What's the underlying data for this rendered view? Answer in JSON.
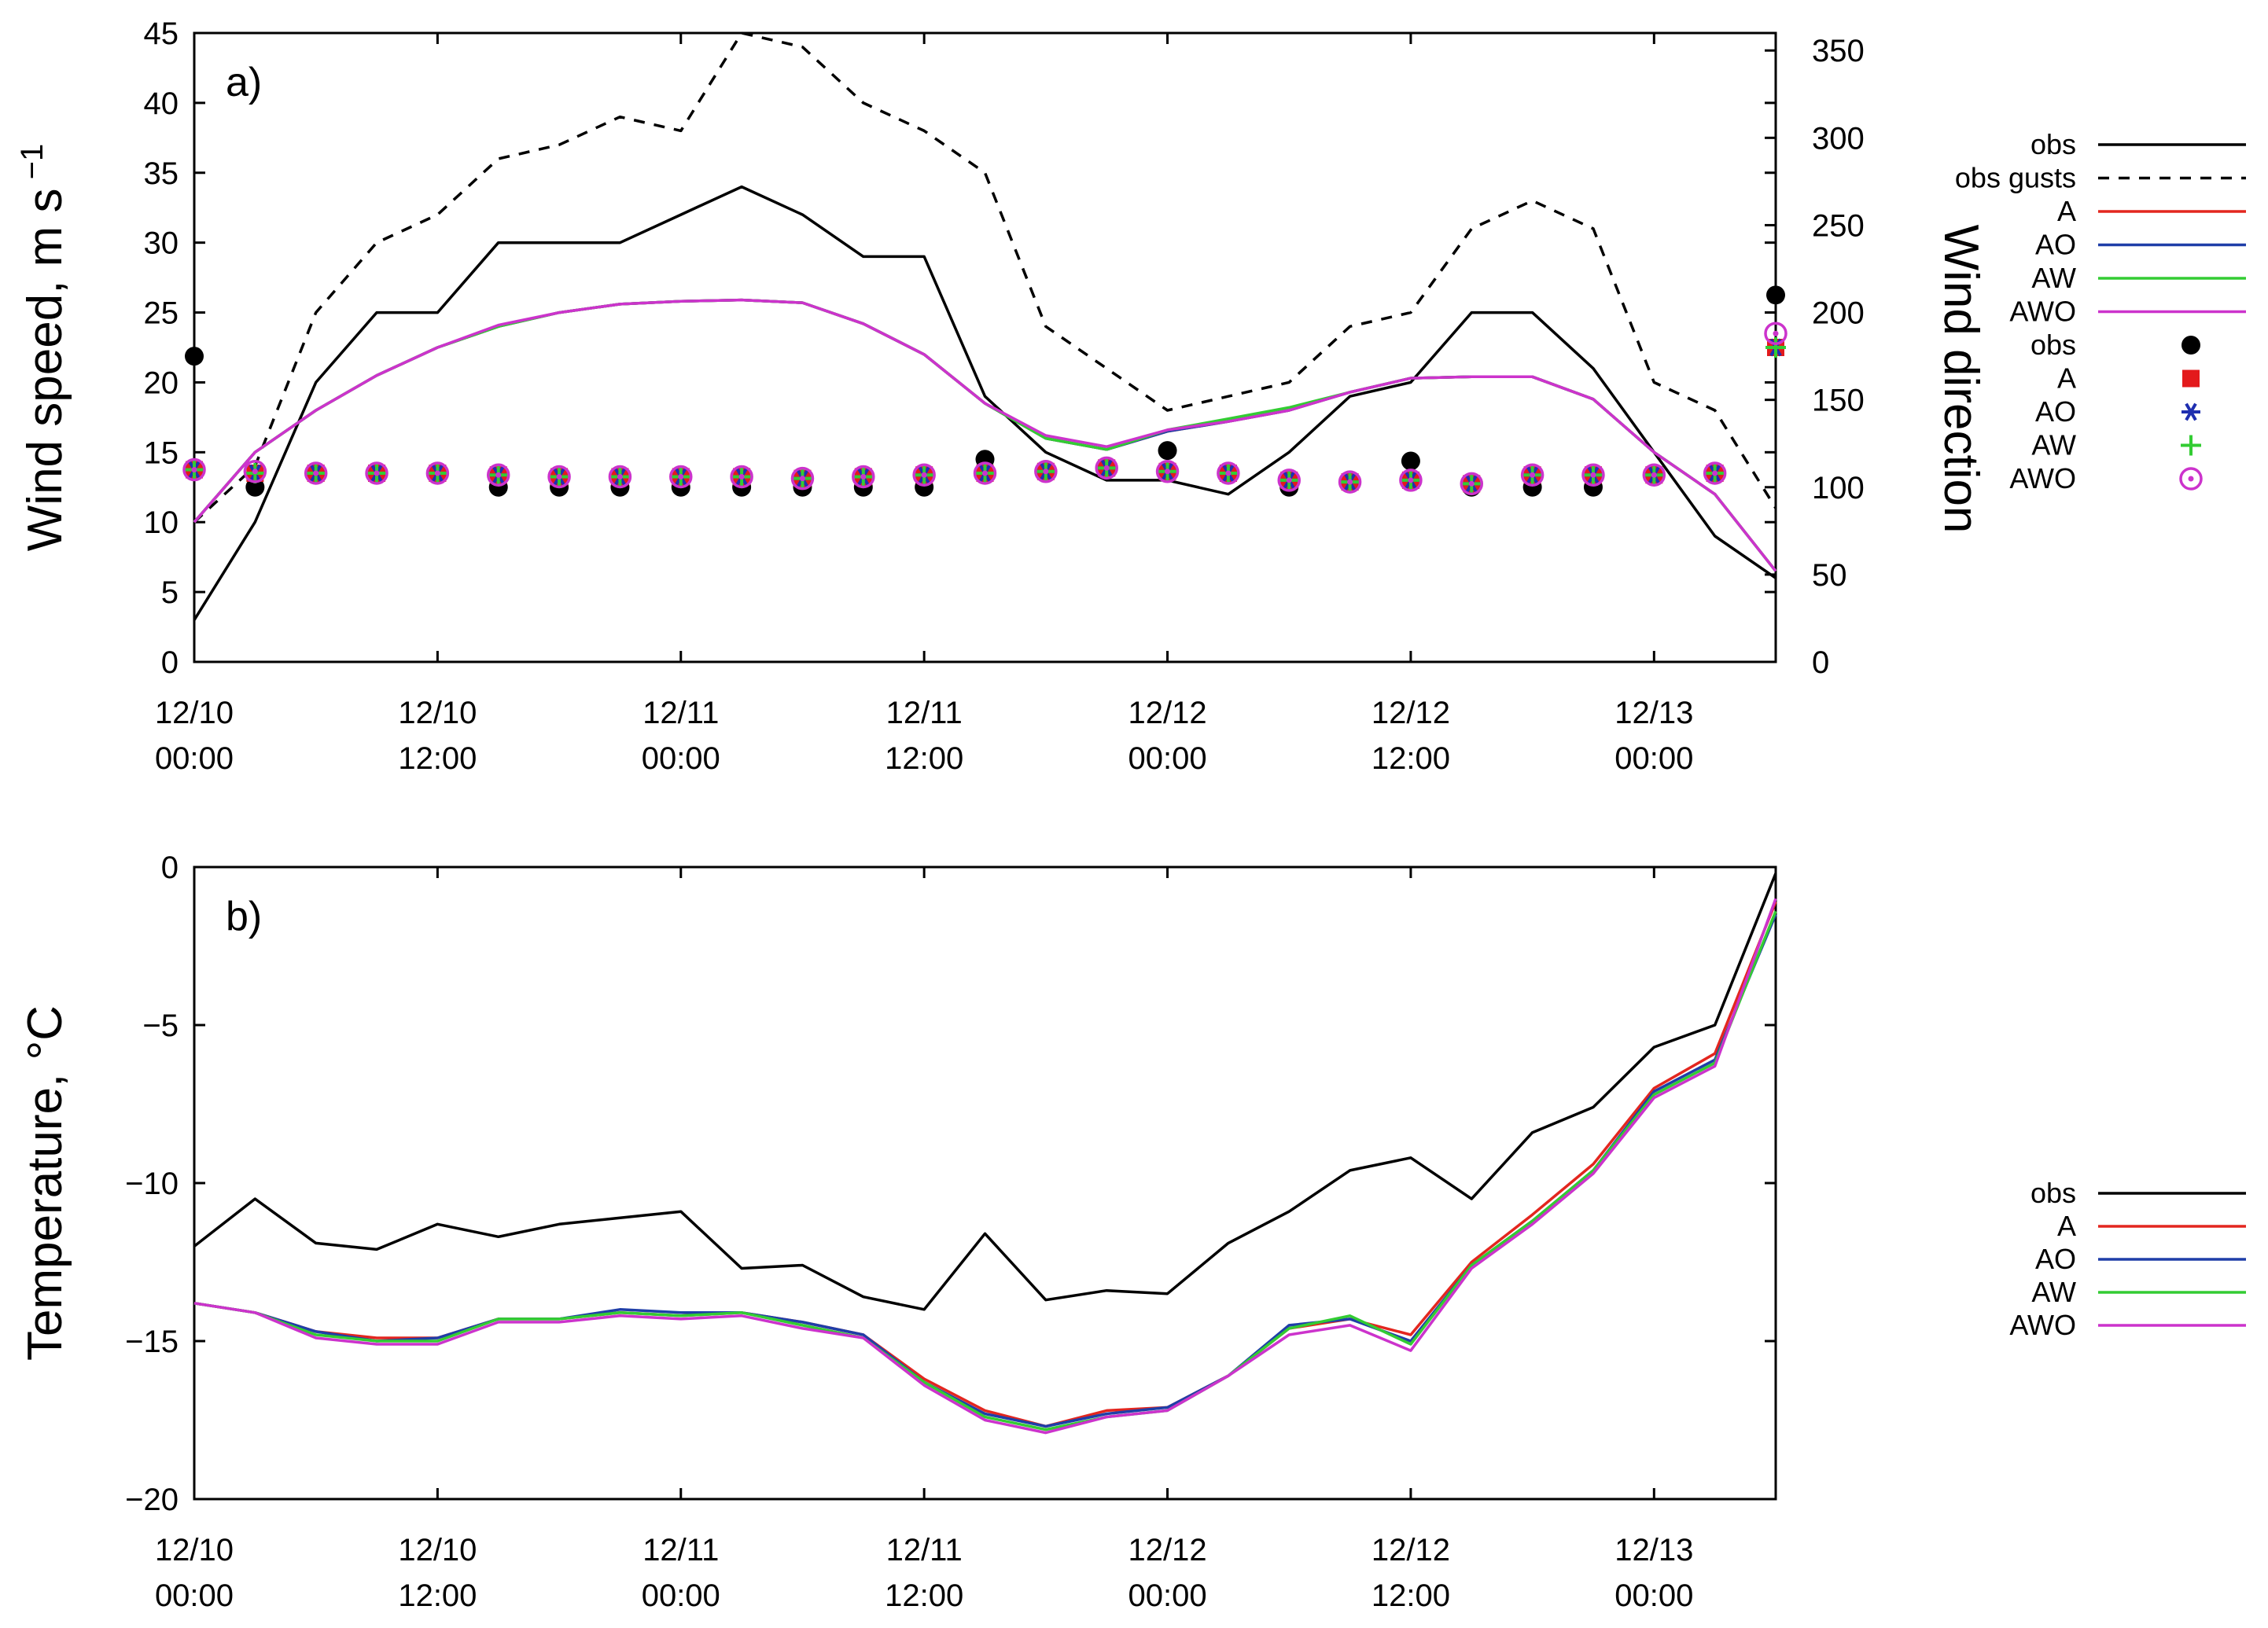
{
  "chart_data": [
    {
      "panel_label": "a)",
      "type": "line",
      "ylabel": "Wind speed, m s",
      "ylabel_sup": "−1",
      "y2label": "Wind direction",
      "ylim": [
        0,
        45
      ],
      "yticks": [
        "0",
        "5",
        "10",
        "15",
        "20",
        "25",
        "30",
        "35",
        "40",
        "45"
      ],
      "y2lim": [
        0,
        360
      ],
      "y2ticks": [
        "0",
        "50",
        "100",
        "150",
        "200",
        "250",
        "300",
        "350"
      ],
      "xlim": [
        0,
        78
      ],
      "xticks": [
        {
          "x": 0,
          "date": "12/10",
          "time": "00:00"
        },
        {
          "x": 12,
          "date": "12/10",
          "time": "12:00"
        },
        {
          "x": 24,
          "date": "12/11",
          "time": "00:00"
        },
        {
          "x": 36,
          "date": "12/11",
          "time": "12:00"
        },
        {
          "x": 48,
          "date": "12/12",
          "time": "00:00"
        },
        {
          "x": 60,
          "date": "12/12",
          "time": "12:00"
        },
        {
          "x": 72,
          "date": "12/13",
          "time": "00:00"
        }
      ],
      "x": [
        0,
        3,
        6,
        9,
        12,
        15,
        18,
        21,
        24,
        27,
        30,
        33,
        36,
        39,
        42,
        45,
        48,
        51,
        54,
        57,
        60,
        63,
        66,
        69,
        72,
        75,
        78
      ],
      "series": [
        {
          "name": "obs",
          "axis": "left",
          "style": "solid",
          "color": "#000000",
          "values": [
            3,
            10,
            20,
            25,
            25,
            30,
            30,
            30,
            32,
            34,
            32,
            29,
            29,
            19,
            15,
            13,
            13,
            12,
            15,
            19,
            20,
            25,
            25,
            21,
            15,
            9,
            6
          ]
        },
        {
          "name": "obs gusts",
          "axis": "left",
          "style": "dashed",
          "color": "#000000",
          "values": [
            10,
            14,
            25,
            30,
            32,
            36,
            37,
            39,
            38,
            45,
            44,
            40,
            38,
            35,
            24,
            21,
            18,
            19,
            20,
            24,
            25,
            31,
            33,
            31,
            20,
            18,
            11
          ]
        },
        {
          "name": "A",
          "axis": "left",
          "style": "solid",
          "color": "#e3261f",
          "values": [
            10,
            15,
            18,
            20.5,
            22.5,
            24,
            25,
            25.6,
            25.8,
            25.9,
            25.7,
            24.2,
            22,
            18.5,
            16,
            15.2,
            16.5,
            17.2,
            18,
            19.3,
            20.3,
            20.4,
            20.4,
            18.8,
            15,
            12,
            6.5
          ]
        },
        {
          "name": "AO",
          "axis": "left",
          "style": "solid",
          "color": "#1f3ea8",
          "values": [
            10,
            15,
            18,
            20.5,
            22.5,
            24,
            25,
            25.6,
            25.8,
            25.9,
            25.7,
            24.2,
            22,
            18.5,
            16,
            15.2,
            16.5,
            17.2,
            18,
            19.3,
            20.3,
            20.4,
            20.4,
            18.8,
            15,
            12,
            6.5
          ]
        },
        {
          "name": "AW",
          "axis": "left",
          "style": "solid",
          "color": "#33cc33",
          "values": [
            10,
            15,
            18,
            20.5,
            22.5,
            24,
            25,
            25.6,
            25.8,
            25.9,
            25.7,
            24.2,
            22,
            18.5,
            16,
            15.2,
            16.6,
            17.4,
            18.2,
            19.3,
            20.3,
            20.4,
            20.4,
            18.8,
            15,
            12,
            6.5
          ]
        },
        {
          "name": "AWO",
          "axis": "left",
          "style": "solid",
          "color": "#cc33cc",
          "values": [
            10,
            15,
            18,
            20.5,
            22.5,
            24.1,
            25,
            25.6,
            25.8,
            25.9,
            25.7,
            24.2,
            22,
            18.5,
            16.2,
            15.4,
            16.6,
            17.2,
            18,
            19.3,
            20.3,
            20.4,
            20.4,
            18.8,
            15,
            12,
            6.5
          ]
        }
      ],
      "markers": {
        "x": [
          0,
          3,
          6,
          9,
          12,
          15,
          18,
          21,
          24,
          27,
          30,
          33,
          36,
          39,
          42,
          45,
          48,
          51,
          54,
          57,
          60,
          63,
          66,
          69,
          72,
          75,
          78
        ],
        "series": [
          {
            "name": "obs",
            "shape": "filled-circle",
            "color": "#000000",
            "values": [
              175,
              100,
              108,
              108,
              108,
              100,
              100,
              100,
              100,
              100,
              100,
              100,
              100,
              116,
              110,
              112,
              121,
              108,
              100,
              104,
              115,
              100,
              100,
              100,
              108,
              108,
              210
            ]
          },
          {
            "name": "A",
            "shape": "filled-square",
            "color": "#e31a1c",
            "values": [
              110,
              108,
              108,
              108,
              108,
              107,
              106,
              106,
              106,
              106,
              105,
              106,
              107,
              108,
              109,
              111,
              109,
              108,
              104,
              103,
              104,
              102,
              107,
              107,
              107,
              108,
              180
            ]
          },
          {
            "name": "AO",
            "shape": "asterisk",
            "color": "#1f2fb0",
            "values": [
              110,
              108,
              108,
              108,
              108,
              107,
              106,
              106,
              106,
              106,
              105,
              106,
              107,
              108,
              109,
              111,
              109,
              108,
              104,
              103,
              104,
              102,
              107,
              107,
              107,
              108,
              180
            ]
          },
          {
            "name": "AW",
            "shape": "plus",
            "color": "#33cc33",
            "values": [
              110,
              108,
              108,
              108,
              108,
              107,
              106,
              106,
              106,
              106,
              105,
              106,
              107,
              108,
              109,
              111,
              109,
              108,
              104,
              103,
              104,
              102,
              107,
              107,
              107,
              108,
              180
            ]
          },
          {
            "name": "AWO",
            "shape": "dotted-circle",
            "color": "#cc33cc",
            "values": [
              110,
              109,
              108,
              108,
              108,
              107,
              106,
              106,
              106,
              106,
              105,
              106,
              107,
              108,
              109,
              111,
              109,
              108,
              104,
              103,
              104,
              102,
              107,
              107,
              107,
              108,
              188
            ]
          }
        ]
      },
      "legend": {
        "position": "outside-right",
        "lines": [
          "obs",
          "obs gusts",
          "A",
          "AO",
          "AW",
          "AWO"
        ],
        "markers": [
          "obs",
          "A",
          "AO",
          "AW",
          "AWO"
        ]
      }
    },
    {
      "panel_label": "b)",
      "type": "line",
      "ylabel": "Temperature, °C",
      "ylim": [
        -20,
        0
      ],
      "yticks": [
        "−20",
        "−15",
        "−10",
        "−5",
        "0"
      ],
      "xlim": [
        0,
        78
      ],
      "xticks": [
        {
          "x": 0,
          "date": "12/10",
          "time": "00:00"
        },
        {
          "x": 12,
          "date": "12/10",
          "time": "12:00"
        },
        {
          "x": 24,
          "date": "12/11",
          "time": "00:00"
        },
        {
          "x": 36,
          "date": "12/11",
          "time": "12:00"
        },
        {
          "x": 48,
          "date": "12/12",
          "time": "00:00"
        },
        {
          "x": 60,
          "date": "12/12",
          "time": "12:00"
        },
        {
          "x": 72,
          "date": "12/13",
          "time": "00:00"
        }
      ],
      "x": [
        0,
        3,
        6,
        9,
        12,
        15,
        18,
        21,
        24,
        27,
        30,
        33,
        36,
        39,
        42,
        45,
        48,
        51,
        54,
        57,
        60,
        63,
        66,
        69,
        72,
        75,
        78
      ],
      "series": [
        {
          "name": "obs",
          "style": "solid",
          "color": "#000000",
          "values": [
            -12,
            -10.5,
            -11.9,
            -12.1,
            -11.3,
            -11.7,
            -11.3,
            -11.1,
            -10.9,
            -12.7,
            -12.6,
            -13.6,
            -14,
            -11.6,
            -13.7,
            -13.4,
            -13.5,
            -11.9,
            -10.9,
            -9.6,
            -9.2,
            -10.5,
            -8.4,
            -7.6,
            -5.7,
            -5,
            -0.2
          ]
        },
        {
          "name": "A",
          "style": "solid",
          "color": "#e3261f",
          "values": [
            -13.8,
            -14.1,
            -14.7,
            -14.9,
            -14.9,
            -14.3,
            -14.3,
            -14.1,
            -14.2,
            -14.1,
            -14.4,
            -14.8,
            -16.2,
            -17.2,
            -17.7,
            -17.2,
            -17.1,
            -16.1,
            -14.6,
            -14.3,
            -14.8,
            -12.5,
            -11,
            -9.4,
            -7,
            -5.9,
            -1.1
          ]
        },
        {
          "name": "AO",
          "style": "solid",
          "color": "#1f3ea8",
          "values": [
            -13.8,
            -14.1,
            -14.7,
            -15,
            -14.9,
            -14.3,
            -14.3,
            -14,
            -14.1,
            -14.1,
            -14.4,
            -14.8,
            -16.3,
            -17.3,
            -17.7,
            -17.3,
            -17.1,
            -16.1,
            -14.5,
            -14.3,
            -15,
            -12.6,
            -11.2,
            -9.6,
            -7.1,
            -6.1,
            -1.5
          ]
        },
        {
          "name": "AW",
          "style": "solid",
          "color": "#33cc33",
          "values": [
            -13.8,
            -14.1,
            -14.8,
            -15,
            -15,
            -14.3,
            -14.3,
            -14.1,
            -14.2,
            -14.1,
            -14.5,
            -14.9,
            -16.3,
            -17.4,
            -17.8,
            -17.4,
            -17.2,
            -16.1,
            -14.6,
            -14.2,
            -15.1,
            -12.6,
            -11.2,
            -9.6,
            -7.2,
            -6.2,
            -1.4
          ]
        },
        {
          "name": "AWO",
          "style": "solid",
          "color": "#cc33cc",
          "values": [
            -13.8,
            -14.1,
            -14.9,
            -15.1,
            -15.1,
            -14.4,
            -14.4,
            -14.2,
            -14.3,
            -14.2,
            -14.6,
            -14.9,
            -16.4,
            -17.5,
            -17.9,
            -17.4,
            -17.2,
            -16.1,
            -14.8,
            -14.5,
            -15.3,
            -12.7,
            -11.3,
            -9.7,
            -7.3,
            -6.3,
            -1
          ]
        }
      ],
      "legend": {
        "position": "outside-right",
        "lines": [
          "obs",
          "A",
          "AO",
          "AW",
          "AWO"
        ]
      }
    }
  ]
}
